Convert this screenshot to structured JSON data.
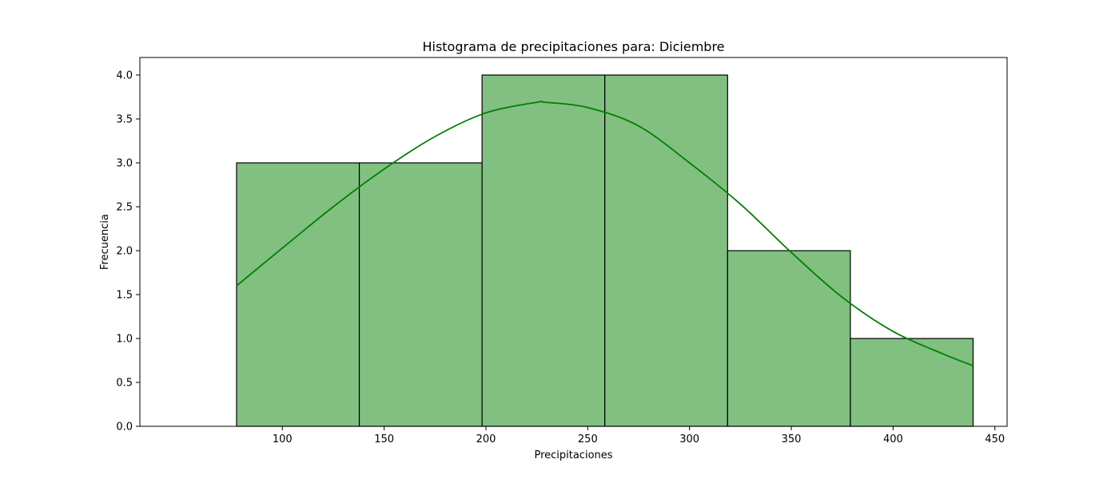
{
  "chart_data": {
    "type": "bar",
    "title": "Histograma de precipitaciones para: Diciembre",
    "xlabel": "Precipitaciones",
    "ylabel": "Frecuencia",
    "bins": [
      {
        "start": 77.5,
        "end": 137.8,
        "count": 3
      },
      {
        "start": 137.8,
        "end": 198.1,
        "count": 3
      },
      {
        "start": 198.1,
        "end": 258.4,
        "count": 4
      },
      {
        "start": 258.4,
        "end": 318.7,
        "count": 4
      },
      {
        "start": 318.7,
        "end": 379.0,
        "count": 2
      },
      {
        "start": 379.0,
        "end": 439.3,
        "count": 1
      }
    ],
    "kde": {
      "x": [
        77.5,
        100,
        125,
        150,
        175,
        200,
        225,
        229,
        250,
        275,
        300,
        325,
        350,
        375,
        400,
        425,
        439.3
      ],
      "y": [
        1.6,
        2.03,
        2.5,
        2.93,
        3.3,
        3.57,
        3.69,
        3.69,
        3.63,
        3.42,
        3.0,
        2.53,
        1.98,
        1.47,
        1.08,
        0.82,
        0.69
      ]
    },
    "xlim": [
      30,
      456
    ],
    "ylim": [
      0,
      4.2
    ],
    "xticks": [
      100,
      150,
      200,
      250,
      300,
      350,
      400,
      450
    ],
    "yticks": [
      0.0,
      0.5,
      1.0,
      1.5,
      2.0,
      2.5,
      3.0,
      3.5,
      4.0
    ],
    "bar_color": "#81c081",
    "edge_color": "#000000",
    "line_color": "#008000",
    "grid": false
  }
}
